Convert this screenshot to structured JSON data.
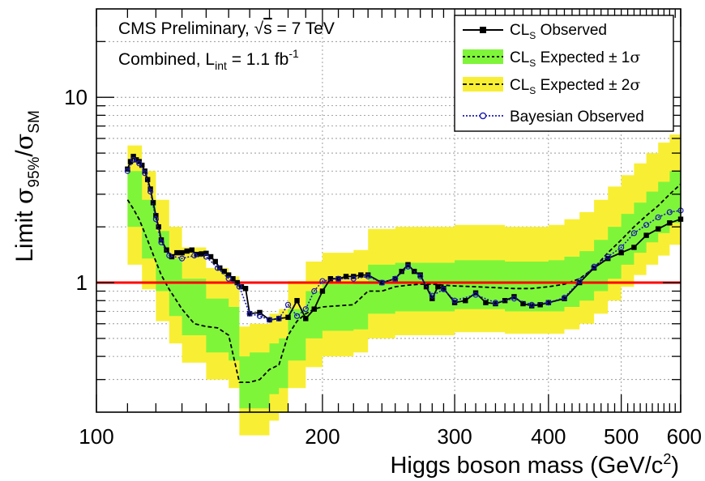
{
  "chart_data": {
    "type": "line",
    "xlabel": "Higgs boson mass (GeV/c",
    "xlabel_sup": "2",
    "xlabel_close": ")",
    "ylabel_prefix": "Limit ",
    "ylabel_sigma": "σ",
    "ylabel_sub95": "95%",
    "ylabel_slash": "/",
    "ylabel_subsm": "SM",
    "x_scale": "log",
    "y_scale": "log",
    "xlim": [
      100,
      600
    ],
    "ylim": [
      0.2,
      30
    ],
    "x_ticks": [
      100,
      200,
      300,
      400,
      500,
      600
    ],
    "x_tick_labels": [
      "100",
      "200",
      "300",
      "400",
      "500",
      "600"
    ],
    "y_ticks": [
      1,
      10
    ],
    "y_tick_labels": [
      "1",
      "10"
    ],
    "grid": true,
    "legend_position": "top-right",
    "annotation_line1_a": "CMS Preliminary, ",
    "annotation_line1_sqrt": "√",
    "annotation_line1_s": "s",
    "annotation_line1_b": " = 7 TeV",
    "annotation_line2_a": "Combined, L",
    "annotation_line2_sub": "int",
    "annotation_line2_b": " = 1.1 fb",
    "annotation_line2_sup": "-1",
    "legend": [
      {
        "key": "observed",
        "pre": "CL",
        "sub": "S",
        "post": " Observed",
        "sym": ""
      },
      {
        "key": "band1",
        "pre": "CL",
        "sub": "S",
        "post": " Expected ± 1",
        "sym": "σ"
      },
      {
        "key": "band2",
        "pre": "CL",
        "sub": "S",
        "post": " Expected ± 2",
        "sym": "σ"
      },
      {
        "key": "bayes",
        "pre": "Bayesian Observed",
        "sub": "",
        "post": "",
        "sym": ""
      }
    ],
    "reference_line": {
      "y": 1.0,
      "color": "#ff0000"
    },
    "colors": {
      "band1": "#7ff53a",
      "band2": "#f8ef34",
      "observed": "#000000",
      "bayes": "#1b1bb0",
      "expected": "#000000",
      "reference": "#ff0000"
    },
    "expected": {
      "x": [
        110,
        112,
        114,
        116,
        118,
        120,
        122,
        125,
        130,
        135,
        140,
        145,
        150,
        155,
        160,
        165,
        170,
        175,
        180,
        185,
        190,
        195,
        200,
        210,
        220,
        230,
        240,
        250,
        260,
        270,
        280,
        290,
        300,
        320,
        340,
        360,
        380,
        400,
        420,
        440,
        460,
        480,
        500,
        520,
        540,
        560,
        580,
        600
      ],
      "y": [
        2.8,
        2.5,
        2.2,
        1.85,
        1.55,
        1.3,
        1.1,
        0.92,
        0.72,
        0.6,
        0.58,
        0.57,
        0.52,
        0.29,
        0.29,
        0.3,
        0.34,
        0.36,
        0.52,
        0.62,
        0.68,
        0.72,
        0.74,
        0.75,
        0.76,
        0.9,
        0.9,
        0.95,
        0.97,
        0.98,
        0.98,
        0.97,
        0.96,
        0.95,
        0.94,
        0.93,
        0.93,
        0.95,
        0.98,
        1.05,
        1.2,
        1.45,
        1.7,
        2.0,
        2.3,
        2.6,
        3.0,
        3.4
      ]
    },
    "band_1sigma": {
      "x": [
        110,
        115,
        120,
        125,
        130,
        140,
        150,
        155,
        160,
        170,
        175,
        180,
        190,
        200,
        220,
        230,
        250,
        300,
        350,
        400,
        420,
        440,
        460,
        480,
        500,
        520,
        540,
        560,
        580,
        600
      ],
      "low": [
        2.0,
        1.35,
        0.9,
        0.66,
        0.52,
        0.42,
        0.38,
        0.21,
        0.21,
        0.25,
        0.27,
        0.38,
        0.5,
        0.55,
        0.56,
        0.68,
        0.7,
        0.72,
        0.7,
        0.7,
        0.74,
        0.8,
        0.9,
        1.05,
        1.25,
        1.45,
        1.65,
        1.85,
        2.1,
        2.4
      ],
      "high": [
        4.0,
        2.8,
        1.9,
        1.35,
        1.05,
        0.82,
        0.74,
        0.4,
        0.42,
        0.47,
        0.5,
        0.72,
        0.9,
        0.98,
        1.02,
        1.25,
        1.28,
        1.32,
        1.3,
        1.32,
        1.38,
        1.48,
        1.7,
        2.0,
        2.35,
        2.7,
        3.1,
        3.5,
        4.0,
        4.6
      ]
    },
    "band_2sigma": {
      "x": [
        110,
        115,
        120,
        125,
        130,
        140,
        150,
        155,
        160,
        170,
        175,
        180,
        190,
        200,
        220,
        230,
        250,
        300,
        350,
        400,
        420,
        440,
        460,
        480,
        500,
        520,
        540,
        560,
        580,
        600
      ],
      "low": [
        1.25,
        0.92,
        0.62,
        0.47,
        0.37,
        0.3,
        0.27,
        0.15,
        0.15,
        0.18,
        0.2,
        0.27,
        0.35,
        0.4,
        0.42,
        0.5,
        0.52,
        0.54,
        0.53,
        0.53,
        0.56,
        0.6,
        0.68,
        0.8,
        0.95,
        1.1,
        1.25,
        1.4,
        1.6,
        1.8
      ],
      "high": [
        5.5,
        4.0,
        2.8,
        2.0,
        1.55,
        1.2,
        1.08,
        0.58,
        0.6,
        0.68,
        0.72,
        1.02,
        1.3,
        1.45,
        1.5,
        1.95,
        2.0,
        2.05,
        2.0,
        2.05,
        2.2,
        2.4,
        2.8,
        3.3,
        3.8,
        4.4,
        5.0,
        5.7,
        6.3,
        6.9
      ]
    },
    "observed": {
      "x": [
        110,
        111,
        112,
        113,
        114,
        115,
        116,
        117,
        118,
        119,
        120,
        121,
        122,
        124,
        126,
        128,
        130,
        132,
        134,
        136,
        138,
        140,
        142,
        144,
        146,
        148,
        150,
        152,
        154,
        156,
        158,
        160,
        165,
        170,
        175,
        180,
        185,
        190,
        195,
        200,
        205,
        210,
        215,
        220,
        225,
        230,
        240,
        250,
        255,
        260,
        265,
        270,
        275,
        280,
        285,
        290,
        300,
        310,
        320,
        330,
        340,
        350,
        360,
        370,
        380,
        390,
        400,
        420,
        440,
        460,
        480,
        500,
        520,
        540,
        560,
        580,
        600
      ],
      "y": [
        4.1,
        4.5,
        4.8,
        4.6,
        4.5,
        4.3,
        4.0,
        3.6,
        3.2,
        2.7,
        2.3,
        2.0,
        1.7,
        1.5,
        1.38,
        1.45,
        1.45,
        1.48,
        1.5,
        1.42,
        1.43,
        1.44,
        1.38,
        1.3,
        1.2,
        1.15,
        1.1,
        1.05,
        1.0,
        0.95,
        0.93,
        0.68,
        0.69,
        0.63,
        0.64,
        0.65,
        0.8,
        0.64,
        0.72,
        0.9,
        1.05,
        1.05,
        1.08,
        1.08,
        1.1,
        1.1,
        1.0,
        1.05,
        1.15,
        1.25,
        1.15,
        1.1,
        0.95,
        0.82,
        0.95,
        0.93,
        0.78,
        0.8,
        0.88,
        0.78,
        0.77,
        0.8,
        0.84,
        0.77,
        0.75,
        0.76,
        0.78,
        0.82,
        1.0,
        1.2,
        1.35,
        1.45,
        1.55,
        1.8,
        1.95,
        2.1,
        2.2
      ]
    },
    "bayesian": {
      "x": [
        110,
        112,
        114,
        116,
        118,
        120,
        122,
        125,
        130,
        135,
        140,
        145,
        150,
        155,
        160,
        165,
        170,
        175,
        180,
        185,
        190,
        195,
        200,
        210,
        220,
        230,
        240,
        250,
        260,
        270,
        280,
        290,
        300,
        320,
        340,
        360,
        380,
        400,
        420,
        440,
        460,
        480,
        500,
        520,
        540,
        560,
        580,
        600
      ],
      "y": [
        4.0,
        4.6,
        4.4,
        3.9,
        3.1,
        2.2,
        1.65,
        1.4,
        1.35,
        1.4,
        1.38,
        1.2,
        1.05,
        0.95,
        0.68,
        0.66,
        0.63,
        0.64,
        0.76,
        0.66,
        0.72,
        0.9,
        1.02,
        1.05,
        1.05,
        1.08,
        1.0,
        1.05,
        1.22,
        1.08,
        0.85,
        0.92,
        0.8,
        0.86,
        0.78,
        0.82,
        0.76,
        0.78,
        0.83,
        1.02,
        1.22,
        1.38,
        1.55,
        1.85,
        2.05,
        2.25,
        2.4,
        2.45
      ]
    }
  }
}
